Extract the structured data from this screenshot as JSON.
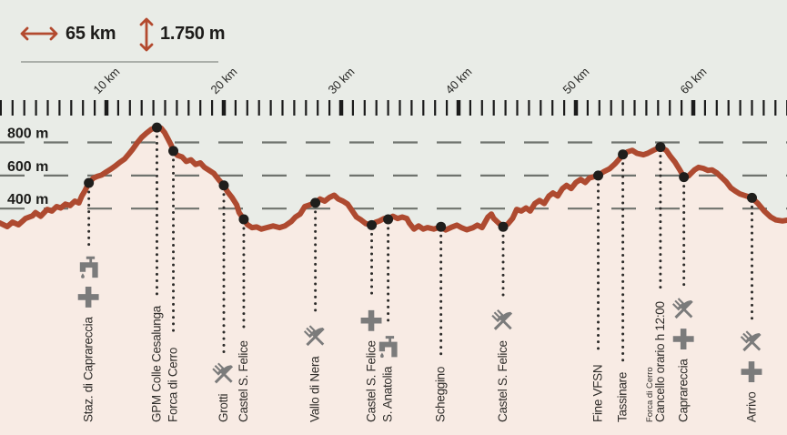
{
  "legend": {
    "distance_label": "65 km",
    "elevation_gain_label": "1.750 m"
  },
  "ruler": {
    "unit": "km",
    "tick_interval_km": 1,
    "major_tick_interval_km": 10,
    "labels": [
      {
        "km": 10,
        "label": "10 km"
      },
      {
        "km": 20,
        "label": "20 km"
      },
      {
        "km": 30,
        "label": "30 km"
      },
      {
        "km": 40,
        "label": "40 km"
      },
      {
        "km": 50,
        "label": "50 km"
      },
      {
        "km": 60,
        "label": "60 km"
      }
    ]
  },
  "y_axis": {
    "unit": "m",
    "gridlines": [
      {
        "value": 800,
        "label": "800 m"
      },
      {
        "value": 600,
        "label": "600 m"
      },
      {
        "value": 400,
        "label": "400 m"
      }
    ]
  },
  "chart_data": {
    "type": "area",
    "title": "Route elevation profile",
    "xlabel": "km",
    "ylabel": "m",
    "x_range_km": [
      0,
      68
    ],
    "y_gridlines_m": [
      400,
      600,
      800
    ],
    "total_distance_km": 65,
    "total_climb_m": 1750,
    "grid": true,
    "profile": [
      [
        0.9,
        313
      ],
      [
        1.55,
        291
      ],
      [
        2.0,
        318
      ],
      [
        2.5,
        302
      ],
      [
        3.1,
        340
      ],
      [
        3.7,
        356
      ],
      [
        3.95,
        376
      ],
      [
        4.4,
        354
      ],
      [
        4.95,
        395
      ],
      [
        5.35,
        385
      ],
      [
        5.75,
        412
      ],
      [
        6.1,
        404
      ],
      [
        6.5,
        427
      ],
      [
        6.9,
        418
      ],
      [
        7.3,
        445
      ],
      [
        7.65,
        434
      ],
      [
        7.9,
        476
      ],
      [
        8.15,
        505
      ],
      [
        8.5,
        555
      ],
      [
        8.9,
        585
      ],
      [
        9.2,
        594
      ],
      [
        9.6,
        603
      ],
      [
        10.0,
        622
      ],
      [
        10.4,
        640
      ],
      [
        10.8,
        660
      ],
      [
        11.15,
        680
      ],
      [
        11.55,
        700
      ],
      [
        11.85,
        725
      ],
      [
        12.25,
        760
      ],
      [
        12.65,
        800
      ],
      [
        13.0,
        830
      ],
      [
        13.4,
        856
      ],
      [
        13.8,
        878
      ],
      [
        14.1,
        888
      ],
      [
        14.3,
        891
      ],
      [
        14.65,
        886
      ],
      [
        14.95,
        860
      ],
      [
        15.25,
        820
      ],
      [
        15.5,
        785
      ],
      [
        15.7,
        748
      ],
      [
        16.05,
        722
      ],
      [
        16.45,
        712
      ],
      [
        16.8,
        685
      ],
      [
        17.2,
        695
      ],
      [
        17.6,
        667
      ],
      [
        18.0,
        676
      ],
      [
        18.35,
        649
      ],
      [
        18.75,
        631
      ],
      [
        19.15,
        613
      ],
      [
        19.55,
        576
      ],
      [
        20.0,
        540
      ],
      [
        20.3,
        503
      ],
      [
        20.7,
        467
      ],
      [
        21.1,
        422
      ],
      [
        21.3,
        376
      ],
      [
        21.7,
        335
      ],
      [
        22.0,
        304
      ],
      [
        22.4,
        285
      ],
      [
        22.8,
        289
      ],
      [
        23.2,
        276
      ],
      [
        23.65,
        285
      ],
      [
        24.2,
        295
      ],
      [
        24.75,
        285
      ],
      [
        25.2,
        295
      ],
      [
        25.75,
        322
      ],
      [
        26.1,
        349
      ],
      [
        26.5,
        367
      ],
      [
        26.9,
        412
      ],
      [
        27.3,
        422
      ],
      [
        27.8,
        435
      ],
      [
        28.2,
        458
      ],
      [
        28.6,
        445
      ],
      [
        29.0,
        467
      ],
      [
        29.4,
        481
      ],
      [
        29.75,
        458
      ],
      [
        30.15,
        445
      ],
      [
        30.55,
        427
      ],
      [
        30.95,
        385
      ],
      [
        31.3,
        349
      ],
      [
        31.7,
        331
      ],
      [
        32.1,
        309
      ],
      [
        32.6,
        300
      ],
      [
        32.95,
        318
      ],
      [
        33.25,
        325
      ],
      [
        33.65,
        340
      ],
      [
        34.0,
        335
      ],
      [
        34.4,
        354
      ],
      [
        34.8,
        340
      ],
      [
        35.2,
        349
      ],
      [
        35.6,
        340
      ],
      [
        35.8,
        313
      ],
      [
        36.2,
        276
      ],
      [
        36.6,
        295
      ],
      [
        37.0,
        276
      ],
      [
        37.35,
        285
      ],
      [
        37.9,
        276
      ],
      [
        38.5,
        290
      ],
      [
        38.9,
        271
      ],
      [
        39.45,
        289
      ],
      [
        39.85,
        300
      ],
      [
        40.25,
        285
      ],
      [
        40.7,
        272
      ],
      [
        41.25,
        285
      ],
      [
        41.6,
        300
      ],
      [
        42.0,
        285
      ],
      [
        42.5,
        349
      ],
      [
        42.8,
        367
      ],
      [
        43.0,
        340
      ],
      [
        43.4,
        313
      ],
      [
        43.8,
        290
      ],
      [
        44.2,
        307
      ],
      [
        44.6,
        340
      ],
      [
        44.95,
        395
      ],
      [
        45.35,
        385
      ],
      [
        45.75,
        404
      ],
      [
        46.1,
        385
      ],
      [
        46.5,
        431
      ],
      [
        46.9,
        449
      ],
      [
        47.3,
        431
      ],
      [
        47.7,
        476
      ],
      [
        48.05,
        494
      ],
      [
        48.45,
        476
      ],
      [
        48.85,
        521
      ],
      [
        49.2,
        540
      ],
      [
        49.6,
        521
      ],
      [
        50.0,
        558
      ],
      [
        50.4,
        576
      ],
      [
        50.8,
        558
      ],
      [
        51.15,
        585
      ],
      [
        51.9,
        600
      ],
      [
        52.35,
        622
      ],
      [
        52.85,
        640
      ],
      [
        53.35,
        672
      ],
      [
        53.7,
        700
      ],
      [
        54.0,
        727
      ],
      [
        54.4,
        743
      ],
      [
        54.8,
        752
      ],
      [
        55.2,
        734
      ],
      [
        55.75,
        725
      ],
      [
        56.1,
        734
      ],
      [
        56.6,
        752
      ],
      [
        57.2,
        772
      ],
      [
        57.7,
        752
      ],
      [
        58.05,
        716
      ],
      [
        58.45,
        680
      ],
      [
        58.85,
        634
      ],
      [
        59.2,
        590
      ],
      [
        59.6,
        598
      ],
      [
        60.1,
        634
      ],
      [
        60.45,
        649
      ],
      [
        60.85,
        643
      ],
      [
        61.25,
        631
      ],
      [
        61.6,
        634
      ],
      [
        62.0,
        616
      ],
      [
        62.4,
        589
      ],
      [
        62.8,
        562
      ],
      [
        63.2,
        525
      ],
      [
        63.55,
        507
      ],
      [
        63.95,
        489
      ],
      [
        64.35,
        480
      ],
      [
        65.0,
        465
      ],
      [
        65.5,
        431
      ],
      [
        66.05,
        385
      ],
      [
        66.6,
        349
      ],
      [
        67.05,
        331
      ],
      [
        67.6,
        325
      ],
      [
        68.0,
        330
      ]
    ],
    "points_of_interest": [
      {
        "km": 8.5,
        "elevation_m": 555,
        "label": "Staz. di Caprareccia",
        "icons": [
          "water-tap",
          "first-aid"
        ]
      },
      {
        "km": 14.3,
        "elevation_m": 890,
        "label": "GPM Colle Cesalunga",
        "icons": []
      },
      {
        "km": 15.7,
        "elevation_m": 748,
        "label": "Forca di Cerro",
        "icons": []
      },
      {
        "km": 20.0,
        "elevation_m": 540,
        "label": "Grotti",
        "icons": [
          "food"
        ]
      },
      {
        "km": 21.7,
        "elevation_m": 335,
        "label": "Castel S. Felice",
        "icons": []
      },
      {
        "km": 27.8,
        "elevation_m": 435,
        "label": "Vallo di Nera",
        "icons": [
          "food"
        ]
      },
      {
        "km": 32.6,
        "elevation_m": 300,
        "label": "Castel S. Felice",
        "icons": [
          "first-aid"
        ]
      },
      {
        "km": 34.0,
        "elevation_m": 335,
        "label": "S. Anatolia",
        "icons": [
          "water-tap"
        ]
      },
      {
        "km": 38.5,
        "elevation_m": 290,
        "label": "Scheggino",
        "icons": []
      },
      {
        "km": 43.8,
        "elevation_m": 290,
        "label": "Castel S. Felice",
        "icons": [
          "food"
        ]
      },
      {
        "km": 51.9,
        "elevation_m": 600,
        "label": "Fine VFSN",
        "icons": []
      },
      {
        "km": 54.0,
        "elevation_m": 727,
        "label": "Tassinare",
        "icons": []
      },
      {
        "km": 57.2,
        "elevation_m": 772,
        "label": "Cancello orario h 12:00",
        "sublabel": "Forca di Cerro",
        "icons": []
      },
      {
        "km": 59.2,
        "elevation_m": 590,
        "label": "Caprareccia",
        "icons": [
          "food",
          "first-aid"
        ]
      },
      {
        "km": 65.0,
        "elevation_m": 465,
        "label": "Arrivo",
        "icons": [
          "food",
          "first-aid"
        ]
      }
    ],
    "legend_position": "top-left"
  },
  "colors": {
    "background": "#e9ece7",
    "area_fill": "#f8ebe4",
    "line": "#ae4a30",
    "marker": "#1f1e1c",
    "grid": "#6f736e",
    "tick": "#1b1b1b",
    "icon": "#7b7b7b",
    "leader": "#2b2a28",
    "accent_arrow": "#b34a2f",
    "divider": "#abafaa"
  }
}
